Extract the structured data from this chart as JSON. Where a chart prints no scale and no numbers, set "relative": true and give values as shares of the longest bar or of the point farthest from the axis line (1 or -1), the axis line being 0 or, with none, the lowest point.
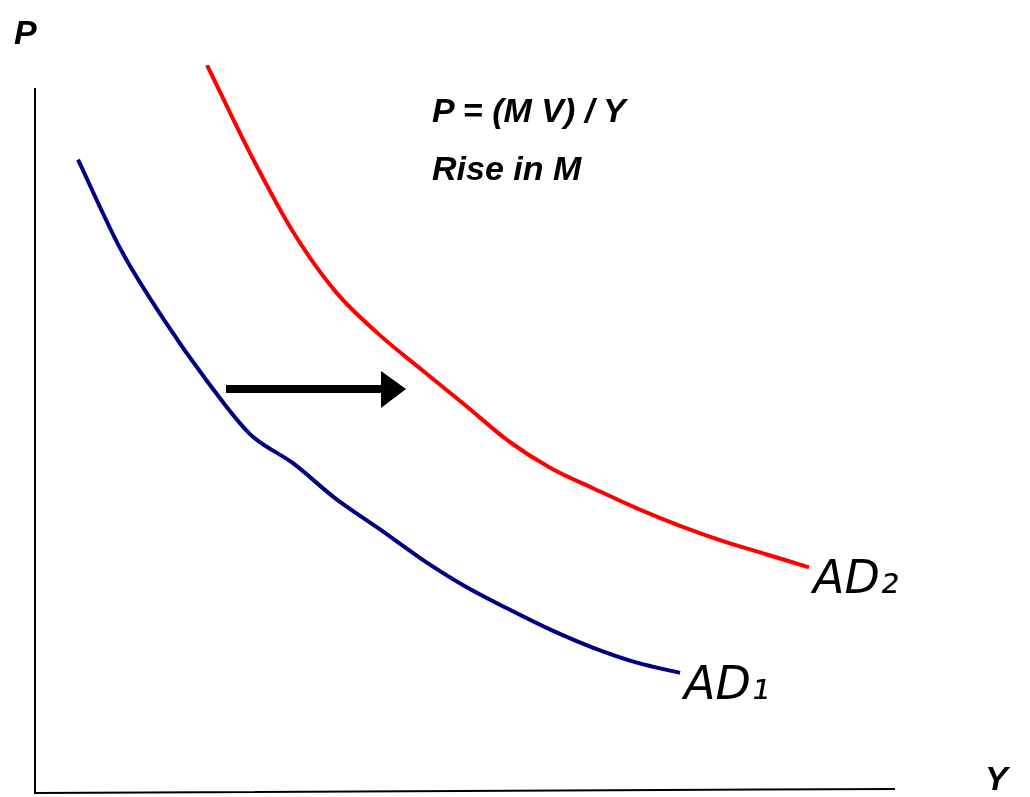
{
  "chart_data": {
    "type": "line",
    "relative": true,
    "marker": "none",
    "xlabel": "Y",
    "ylabel": "P",
    "annotations": [
      "P = (M V) / Y",
      "Rise in M"
    ],
    "categories": [
      null,
      null,
      null,
      null,
      null,
      null,
      null,
      null,
      null,
      null,
      null,
      null,
      null,
      null,
      null,
      null,
      null,
      null,
      null,
      null,
      null
    ],
    "series": [
      {
        "name": "AD₁",
        "color": "#000080",
        "values": [
          null,
          0.87,
          0.746,
          0.65,
          0.566,
          0.493,
          0.453,
          0.404,
          0.363,
          0.321,
          0.284,
          0.253,
          0.224,
          0.199,
          0.179,
          0.165,
          null,
          null,
          null,
          null,
          null
        ]
      },
      {
        "name": "AD₂",
        "color": "#ff0000",
        "values": [
          null,
          null,
          null,
          null,
          1.0,
          0.879,
          0.771,
          0.688,
          0.63,
          0.581,
          0.533,
          0.484,
          0.446,
          0.418,
          0.391,
          0.367,
          0.346,
          0.328,
          0.31,
          null,
          null
        ]
      }
    ]
  }
}
